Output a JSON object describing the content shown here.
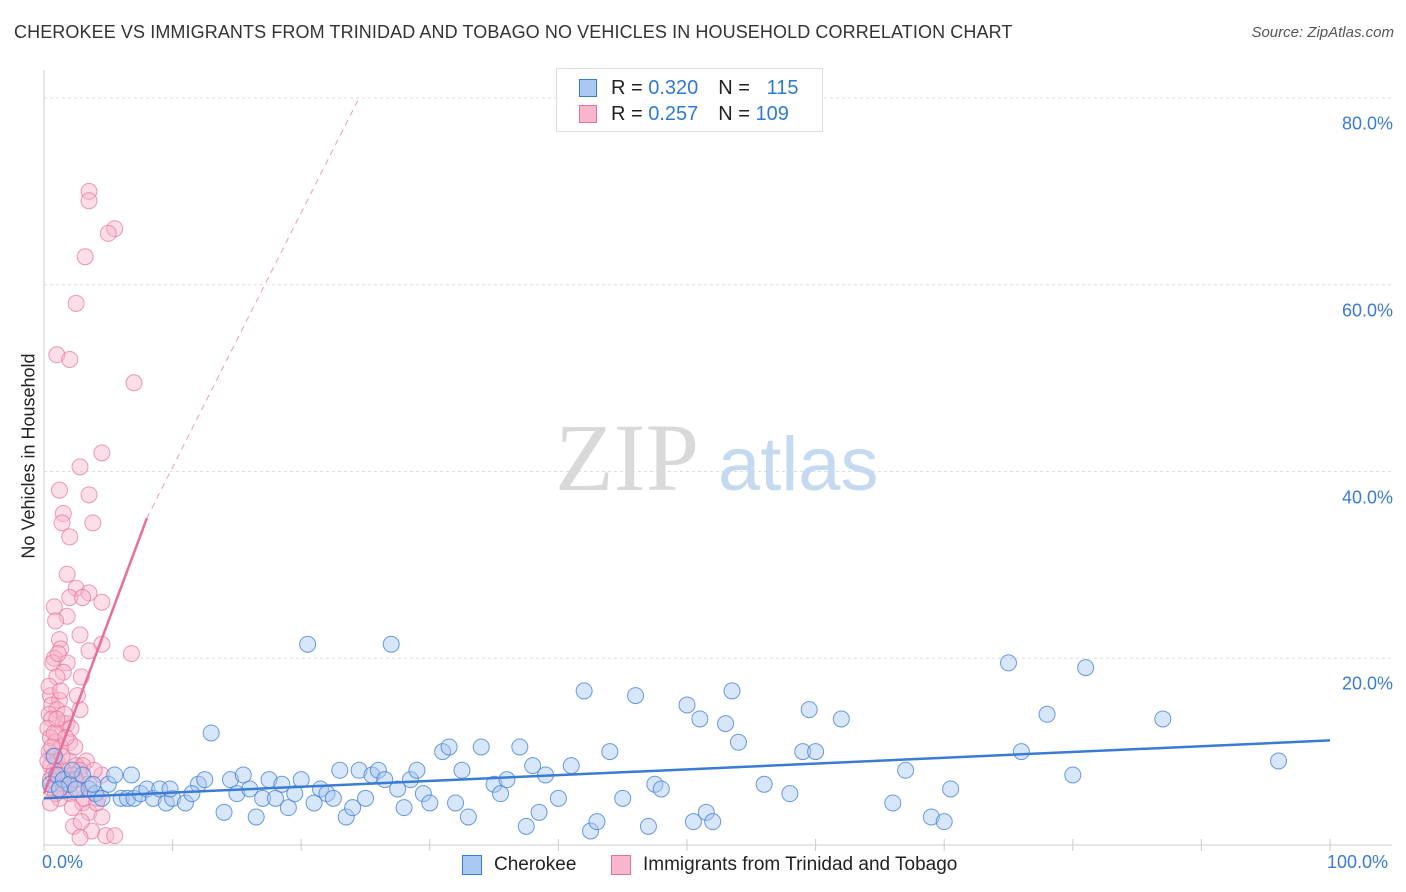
{
  "title": "CHEROKEE VS IMMIGRANTS FROM TRINIDAD AND TOBAGO NO VEHICLES IN HOUSEHOLD CORRELATION CHART",
  "source": "Source: ZipAtlas.com",
  "watermark": {
    "zip": "ZIP",
    "atlas": "atlas"
  },
  "legend": {
    "series1": {
      "r_label": "R =",
      "r_value": "0.320",
      "n_label": "N =",
      "n_value": "115"
    },
    "series2": {
      "r_label": "R =",
      "r_value": "0.257",
      "n_label": "N =",
      "n_value": "109"
    }
  },
  "colors": {
    "blue": "#3a7bd5",
    "blue_fill": "#a9c8f2",
    "pink": "#e76f9a",
    "pink_fill": "#f7b6cb",
    "grid": "#dddddd"
  },
  "chart_data": {
    "type": "scatter",
    "title": "CHEROKEE VS IMMIGRANTS FROM TRINIDAD AND TOBAGO NO VEHICLES IN HOUSEHOLD CORRELATION CHART",
    "xlabel": "",
    "ylabel": "No Vehicles in Household",
    "xlim": [
      0,
      100
    ],
    "ylim": [
      0,
      83
    ],
    "x_tick_labels": [
      "0.0%",
      "100.0%"
    ],
    "y_ticks": [
      20,
      40,
      60,
      80
    ],
    "y_tick_labels": [
      "20.0%",
      "40.0%",
      "60.0%",
      "80.0%"
    ],
    "legend_position": "top-center",
    "series": [
      {
        "name": "Cherokee",
        "color": "#3a7bd5",
        "trend": {
          "x0": 0,
          "y0": 5.0,
          "x1": 100,
          "y1": 11.2
        },
        "points": [
          [
            0.5,
            6.5
          ],
          [
            0.8,
            9.5
          ],
          [
            1.0,
            7.5
          ],
          [
            1.5,
            7.0
          ],
          [
            2.0,
            6.5
          ],
          [
            2.5,
            6.0
          ],
          [
            3.0,
            7.5
          ],
          [
            3.5,
            6.0
          ],
          [
            4.0,
            5.5
          ],
          [
            4.5,
            5.0
          ],
          [
            5.0,
            6.5
          ],
          [
            5.5,
            7.5
          ],
          [
            6.0,
            5.0
          ],
          [
            6.5,
            5.0
          ],
          [
            7.0,
            5.0
          ],
          [
            7.5,
            5.5
          ],
          [
            8.0,
            6.0
          ],
          [
            8.5,
            5.0
          ],
          [
            9.0,
            6.0
          ],
          [
            9.5,
            4.5
          ],
          [
            10.0,
            5.0
          ],
          [
            11.0,
            4.5
          ],
          [
            12.0,
            6.5
          ],
          [
            12.5,
            7.0
          ],
          [
            13.0,
            12.0
          ],
          [
            14.0,
            3.5
          ],
          [
            14.5,
            7.0
          ],
          [
            15.0,
            5.5
          ],
          [
            15.5,
            7.5
          ],
          [
            16.0,
            6.0
          ],
          [
            16.5,
            3.0
          ],
          [
            17.0,
            5.0
          ],
          [
            17.5,
            7.0
          ],
          [
            18.0,
            5.0
          ],
          [
            19.0,
            4.0
          ],
          [
            19.5,
            5.5
          ],
          [
            20.0,
            7.0
          ],
          [
            20.5,
            21.5
          ],
          [
            21.0,
            4.5
          ],
          [
            21.5,
            6.0
          ],
          [
            22.0,
            5.5
          ],
          [
            22.5,
            5.0
          ],
          [
            23.0,
            8.0
          ],
          [
            23.5,
            3.0
          ],
          [
            24.0,
            4.0
          ],
          [
            24.5,
            8.0
          ],
          [
            25.0,
            5.0
          ],
          [
            25.5,
            7.5
          ],
          [
            26.0,
            8.0
          ],
          [
            27.0,
            21.5
          ],
          [
            27.5,
            6.0
          ],
          [
            28.0,
            4.0
          ],
          [
            28.5,
            7.0
          ],
          [
            29.0,
            8.0
          ],
          [
            29.5,
            5.5
          ],
          [
            30.0,
            4.5
          ],
          [
            31.0,
            10.0
          ],
          [
            31.5,
            10.5
          ],
          [
            32.0,
            4.5
          ],
          [
            32.5,
            8.0
          ],
          [
            33.0,
            3.0
          ],
          [
            34.0,
            10.5
          ],
          [
            35.0,
            6.5
          ],
          [
            35.5,
            5.5
          ],
          [
            36.0,
            7.0
          ],
          [
            37.0,
            10.5
          ],
          [
            37.5,
            2.0
          ],
          [
            38.0,
            8.5
          ],
          [
            38.5,
            3.5
          ],
          [
            39.0,
            7.5
          ],
          [
            40.0,
            5.0
          ],
          [
            41.0,
            8.5
          ],
          [
            42.0,
            16.5
          ],
          [
            42.5,
            1.5
          ],
          [
            43.0,
            2.5
          ],
          [
            44.0,
            10.0
          ],
          [
            45.0,
            5.0
          ],
          [
            46.0,
            16.0
          ],
          [
            47.0,
            2.0
          ],
          [
            47.5,
            6.5
          ],
          [
            48.0,
            6.0
          ],
          [
            50.0,
            15.0
          ],
          [
            50.5,
            2.5
          ],
          [
            51.0,
            13.5
          ],
          [
            51.5,
            3.5
          ],
          [
            52.0,
            2.5
          ],
          [
            53.0,
            13.0
          ],
          [
            53.5,
            16.5
          ],
          [
            54.0,
            11.0
          ],
          [
            56.0,
            6.5
          ],
          [
            58.0,
            5.5
          ],
          [
            59.0,
            10.0
          ],
          [
            59.5,
            14.5
          ],
          [
            60.0,
            10.0
          ],
          [
            62.0,
            13.5
          ],
          [
            66.0,
            4.5
          ],
          [
            67.0,
            8.0
          ],
          [
            69.0,
            3.0
          ],
          [
            70.0,
            2.5
          ],
          [
            70.5,
            6.0
          ],
          [
            75.0,
            19.5
          ],
          [
            76.0,
            10.0
          ],
          [
            78.0,
            14.0
          ],
          [
            80.0,
            7.5
          ],
          [
            81.0,
            19.0
          ],
          [
            87.0,
            13.5
          ],
          [
            96.0,
            9.0
          ],
          [
            1.2,
            6.0
          ],
          [
            2.2,
            8.0
          ],
          [
            3.8,
            6.5
          ],
          [
            6.8,
            7.5
          ],
          [
            9.8,
            6.0
          ],
          [
            11.5,
            5.5
          ],
          [
            18.5,
            6.5
          ],
          [
            26.5,
            7.0
          ]
        ]
      },
      {
        "name": "Immigrants from Trinidad and Tobago",
        "color": "#e76f9a",
        "trend": {
          "x0": 0,
          "y0": 5.5,
          "x1": 8.0,
          "y1": 35.0,
          "dash_x1": 24.5,
          "dash_y1": 80.0
        },
        "points": [
          [
            3.5,
            70.0
          ],
          [
            3.5,
            69.0
          ],
          [
            5.5,
            66.0
          ],
          [
            5.0,
            65.5
          ],
          [
            3.2,
            63.0
          ],
          [
            2.5,
            58.0
          ],
          [
            1.0,
            52.5
          ],
          [
            2.0,
            52.0
          ],
          [
            7.0,
            49.5
          ],
          [
            4.5,
            42.0
          ],
          [
            2.8,
            40.5
          ],
          [
            1.2,
            38.0
          ],
          [
            3.5,
            37.5
          ],
          [
            1.5,
            35.5
          ],
          [
            1.4,
            34.5
          ],
          [
            3.8,
            34.5
          ],
          [
            2.0,
            33.0
          ],
          [
            1.8,
            29.0
          ],
          [
            2.5,
            27.5
          ],
          [
            3.5,
            27.0
          ],
          [
            2.0,
            26.5
          ],
          [
            3.0,
            26.5
          ],
          [
            4.5,
            26.0
          ],
          [
            0.8,
            25.5
          ],
          [
            1.8,
            24.5
          ],
          [
            0.9,
            24.0
          ],
          [
            2.8,
            22.5
          ],
          [
            1.2,
            22.0
          ],
          [
            4.5,
            21.5
          ],
          [
            1.3,
            21.0
          ],
          [
            3.5,
            20.8
          ],
          [
            6.8,
            20.5
          ],
          [
            0.8,
            20.0
          ],
          [
            0.7,
            19.5
          ],
          [
            1.8,
            19.5
          ],
          [
            1.5,
            18.5
          ],
          [
            2.9,
            18.0
          ],
          [
            1.0,
            18.0
          ],
          [
            0.5,
            16.0
          ],
          [
            1.2,
            15.5
          ],
          [
            0.6,
            15.0
          ],
          [
            1.0,
            14.5
          ],
          [
            2.8,
            14.5
          ],
          [
            0.4,
            14.0
          ],
          [
            0.6,
            13.5
          ],
          [
            1.5,
            13.0
          ],
          [
            1.8,
            13.0
          ],
          [
            0.3,
            12.5
          ],
          [
            1.0,
            12.0
          ],
          [
            0.5,
            11.5
          ],
          [
            0.9,
            11.0
          ],
          [
            2.0,
            11.0
          ],
          [
            1.3,
            10.5
          ],
          [
            0.4,
            10.0
          ],
          [
            0.7,
            9.5
          ],
          [
            1.0,
            9.0
          ],
          [
            3.3,
            9.0
          ],
          [
            2.0,
            9.0
          ],
          [
            0.5,
            8.5
          ],
          [
            2.5,
            8.5
          ],
          [
            3.0,
            8.5
          ],
          [
            1.5,
            8.0
          ],
          [
            2.8,
            8.0
          ],
          [
            0.8,
            8.0
          ],
          [
            1.2,
            7.5
          ],
          [
            2.2,
            7.5
          ],
          [
            4.5,
            7.5
          ],
          [
            0.5,
            7.0
          ],
          [
            1.8,
            7.0
          ],
          [
            2.5,
            7.0
          ],
          [
            1.0,
            6.5
          ],
          [
            3.5,
            6.5
          ],
          [
            0.6,
            6.0
          ],
          [
            1.5,
            6.0
          ],
          [
            2.0,
            5.5
          ],
          [
            4.2,
            5.0
          ],
          [
            1.2,
            5.0
          ],
          [
            3.0,
            4.5
          ],
          [
            2.2,
            4.0
          ],
          [
            3.5,
            3.5
          ],
          [
            4.5,
            3.0
          ],
          [
            2.3,
            2.0
          ],
          [
            3.7,
            1.5
          ],
          [
            4.8,
            1.0
          ],
          [
            5.5,
            1.0
          ],
          [
            2.8,
            0.8
          ],
          [
            0.8,
            12.0
          ],
          [
            1.6,
            14.0
          ],
          [
            2.4,
            10.5
          ],
          [
            0.4,
            17.0
          ],
          [
            1.1,
            20.5
          ],
          [
            2.6,
            16.0
          ],
          [
            0.7,
            7.5
          ],
          [
            1.9,
            6.5
          ],
          [
            3.1,
            5.0
          ],
          [
            0.9,
            5.5
          ],
          [
            1.4,
            9.5
          ],
          [
            2.1,
            12.5
          ],
          [
            0.3,
            9.0
          ],
          [
            2.7,
            6.0
          ],
          [
            1.7,
            11.5
          ],
          [
            0.5,
            4.5
          ],
          [
            3.9,
            8.0
          ],
          [
            2.9,
            2.5
          ],
          [
            1.3,
            16.5
          ],
          [
            0.6,
            10.5
          ],
          [
            2.4,
            7.0
          ],
          [
            1.0,
            13.5
          ],
          [
            4.1,
            4.5
          ]
        ]
      }
    ]
  },
  "bottom_legend": {
    "series1": "Cherokee",
    "series2": "Immigrants from Trinidad and Tobago"
  }
}
